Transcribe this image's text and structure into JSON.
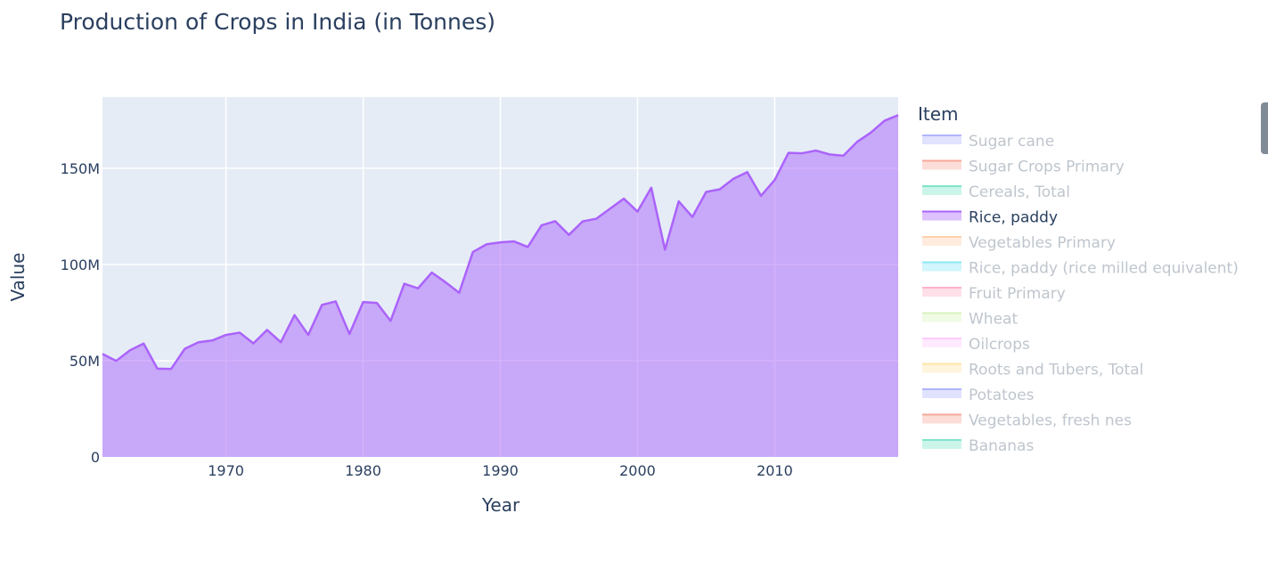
{
  "chart_data": {
    "type": "area",
    "title": "Production of Crops in India (in Tonnes)",
    "xlabel": "Year",
    "ylabel": "Value",
    "xlim": [
      1961,
      2019
    ],
    "ylim": [
      0,
      187000000
    ],
    "xticks": [
      1970,
      1980,
      1990,
      2000,
      2010
    ],
    "xtick_labels": [
      "1970",
      "1980",
      "1990",
      "2000",
      "2010"
    ],
    "yticks": [
      0,
      50000000,
      100000000,
      150000000
    ],
    "ytick_labels": [
      "0",
      "50M",
      "100M",
      "150M"
    ],
    "grid": true,
    "legend_title": "Item",
    "legend_position": "right",
    "legend": [
      {
        "name": "Sugar cane",
        "color": "#636efa",
        "visible": false
      },
      {
        "name": "Sugar Crops Primary",
        "color": "#ef553b",
        "visible": false
      },
      {
        "name": "Cereals, Total",
        "color": "#00cc96",
        "visible": false
      },
      {
        "name": "Rice, paddy",
        "color": "#ab63fa",
        "visible": true
      },
      {
        "name": "Vegetables Primary",
        "color": "#ffa15a",
        "visible": false
      },
      {
        "name": "Rice, paddy (rice milled equivalent)",
        "color": "#19d3f3",
        "visible": false
      },
      {
        "name": "Fruit Primary",
        "color": "#ff6692",
        "visible": false
      },
      {
        "name": "Wheat",
        "color": "#b6e880",
        "visible": false
      },
      {
        "name": "Oilcrops",
        "color": "#ff97ff",
        "visible": false
      },
      {
        "name": "Roots and Tubers, Total",
        "color": "#fecb52",
        "visible": false
      },
      {
        "name": "Potatoes",
        "color": "#636efa",
        "visible": false
      },
      {
        "name": "Vegetables, fresh nes",
        "color": "#ef553b",
        "visible": false
      },
      {
        "name": "Bananas",
        "color": "#00cc96",
        "visible": false
      }
    ],
    "series": [
      {
        "name": "Rice, paddy",
        "color": "#ab63fa",
        "x": [
          1961,
          1962,
          1963,
          1964,
          1965,
          1966,
          1967,
          1968,
          1969,
          1970,
          1971,
          1972,
          1973,
          1974,
          1975,
          1976,
          1977,
          1978,
          1979,
          1980,
          1981,
          1982,
          1983,
          1984,
          1985,
          1986,
          1987,
          1988,
          1989,
          1990,
          1991,
          1992,
          1993,
          1994,
          1995,
          1996,
          1997,
          1998,
          1999,
          2000,
          2001,
          2002,
          2003,
          2004,
          2005,
          2006,
          2007,
          2008,
          2009,
          2010,
          2011,
          2012,
          2013,
          2014,
          2015,
          2016,
          2017,
          2018,
          2019
        ],
        "y": [
          53500000,
          49900000,
          55400000,
          58900000,
          45900000,
          45700000,
          56200000,
          59600000,
          60500000,
          63400000,
          64600000,
          59000000,
          66000000,
          59600000,
          73700000,
          63400000,
          79000000,
          80800000,
          63900000,
          80500000,
          80000000,
          70700000,
          90000000,
          87600000,
          95800000,
          90800000,
          85300000,
          106500000,
          110500000,
          111500000,
          112000000,
          109100000,
          120300000,
          122500000,
          115400000,
          122400000,
          123800000,
          129000000,
          134200000,
          127500000,
          139900000,
          107700000,
          132800000,
          124700000,
          137700000,
          139100000,
          144600000,
          148000000,
          135700000,
          143900000,
          158000000,
          157800000,
          159200000,
          157200000,
          156500000,
          163700000,
          168500000,
          174700000,
          177600000
        ]
      }
    ]
  }
}
